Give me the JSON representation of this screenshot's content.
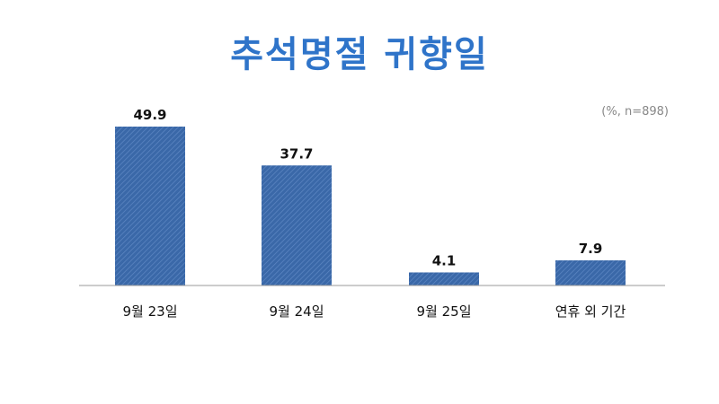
{
  "chart_data": {
    "type": "bar",
    "title": "추석명절 귀향일",
    "note": "(%, n=898)",
    "categories": [
      "9월 23일",
      "9월 24일",
      "9월 25일",
      "연휴 외 기간"
    ],
    "values": [
      49.9,
      37.7,
      4.1,
      7.9
    ],
    "value_labels": [
      "49.9",
      "37.7",
      "4.1",
      "7.9"
    ],
    "ylim": [
      0,
      49.9
    ],
    "bar_color": "#3a68a8",
    "grid": false,
    "legend": "none"
  }
}
